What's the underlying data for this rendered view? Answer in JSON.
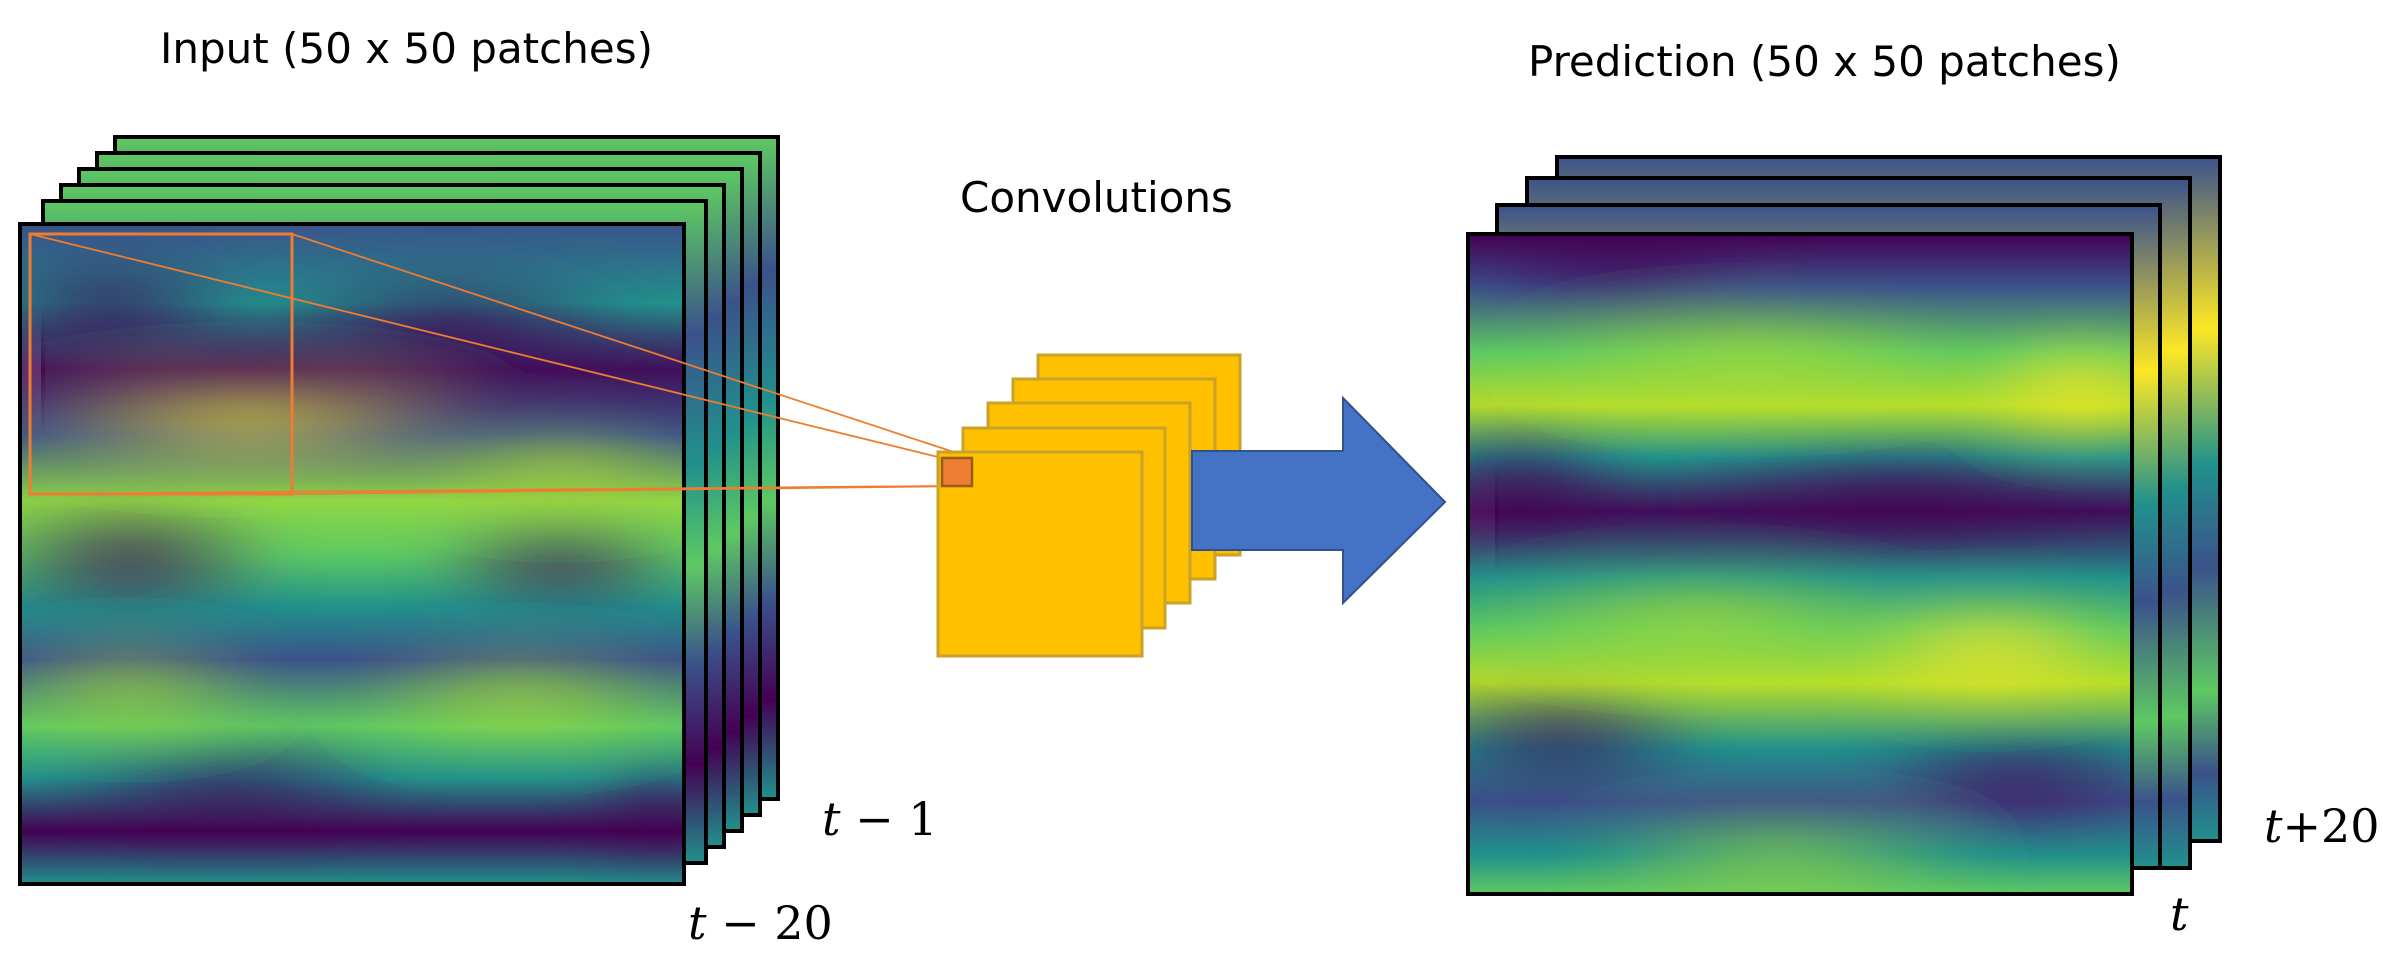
{
  "labels": {
    "input_title": "Input (50 x 50 patches)",
    "prediction_title": "Prediction (50 x 50 patches)",
    "convolutions": "Convolutions",
    "input_first_var": "t",
    "input_first_rest": " − 1",
    "input_last_var": "t",
    "input_last_rest": " − 20",
    "output_back_var": "t",
    "output_back_rest": "+20",
    "output_front_var": "t"
  },
  "colors": {
    "viridis_dark": "#440154",
    "viridis_indigo": "#3b528b",
    "viridis_teal": "#21918c",
    "viridis_green": "#5ec962",
    "viridis_yellow": "#fde725",
    "kernel_fill": "#ffc000",
    "kernel_border": "#c9a227",
    "kernel_patch": "#ed7d31",
    "receptive_field_line": "#ed7d31",
    "arrow_fill": "#4472c4",
    "arrow_border": "#2f528f",
    "frame_border": "#000000"
  }
}
